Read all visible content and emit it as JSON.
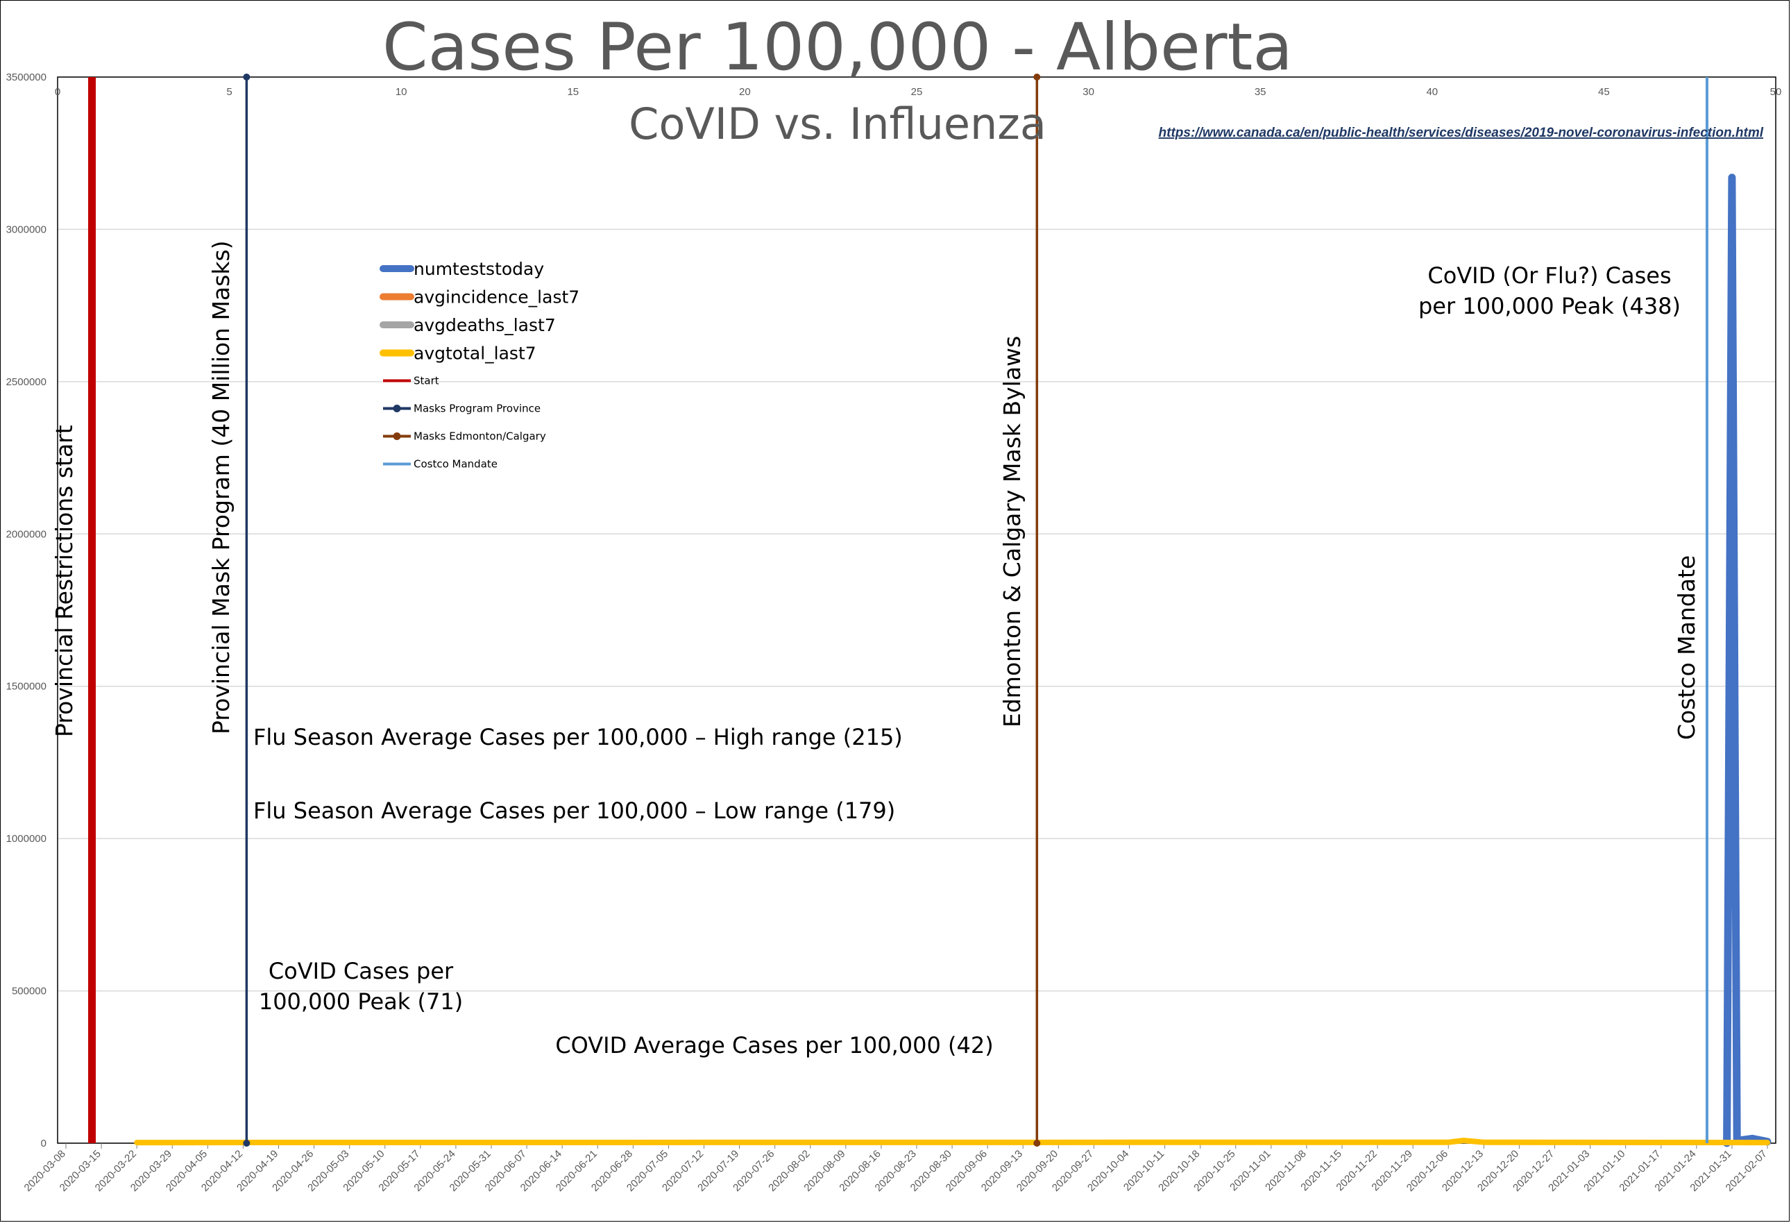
{
  "chart_data": {
    "type": "line",
    "title": "Cases Per 100,000 - Alberta",
    "subtitle": "CoVID vs. Influenza",
    "source_link": "https://www.canada.ca/en/public-health/services/diseases/2019-novel-coronavirus-infection.html",
    "ylim": [
      0,
      3500000
    ],
    "yticks": [
      "0",
      "500000",
      "1000000",
      "1500000",
      "2000000",
      "2500000",
      "3000000",
      "3500000"
    ],
    "xlim_secondary": [
      0,
      50
    ],
    "xticks_secondary": [
      "0",
      "5",
      "10",
      "15",
      "20",
      "25",
      "30",
      "35",
      "40",
      "45",
      "50"
    ],
    "grid": true,
    "legend_position": "upper-left inside",
    "x_dates": [
      "2020-03-08",
      "2020-03-15",
      "2020-03-22",
      "2020-03-29",
      "2020-04-05",
      "2020-04-12",
      "2020-04-19",
      "2020-04-26",
      "2020-05-03",
      "2020-05-10",
      "2020-05-17",
      "2020-05-24",
      "2020-05-31",
      "2020-06-07",
      "2020-06-14",
      "2020-06-21",
      "2020-06-28",
      "2020-07-05",
      "2020-07-12",
      "2020-07-19",
      "2020-07-26",
      "2020-08-02",
      "2020-08-09",
      "2020-08-16",
      "2020-08-23",
      "2020-08-30",
      "2020-09-06",
      "2020-09-13",
      "2020-09-20",
      "2020-09-27",
      "2020-10-04",
      "2020-10-11",
      "2020-10-18",
      "2020-10-25",
      "2020-11-01",
      "2020-11-08",
      "2020-11-15",
      "2020-11-22",
      "2020-11-29",
      "2020-12-06",
      "2020-12-13",
      "2020-12-20",
      "2020-12-27",
      "2021-01-03",
      "2021-01-10",
      "2021-01-17",
      "2021-01-24",
      "2021-01-31",
      "2021-02-07"
    ],
    "series": [
      {
        "name": "numteststoday",
        "color": "#4472c4",
        "points": [
          [
            "2021-01-30",
            0
          ],
          [
            "2021-01-31",
            3170000
          ],
          [
            "2021-02-01",
            8000
          ],
          [
            "2021-02-04",
            15000
          ],
          [
            "2021-02-07",
            5000
          ]
        ]
      },
      {
        "name": "avgincidence_last7",
        "color": "#ed7d31",
        "points": []
      },
      {
        "name": "avgdeaths_last7",
        "color": "#a5a5a5",
        "points": []
      },
      {
        "name": "avgtotal_last7",
        "color": "#ffc000",
        "points": [
          [
            "2020-03-22",
            2000
          ],
          [
            "2020-12-06",
            3000
          ],
          [
            "2020-12-09",
            9000
          ],
          [
            "2020-12-13",
            3000
          ],
          [
            "2021-02-07",
            2000
          ]
        ]
      }
    ],
    "markers": [
      {
        "name": "Start",
        "color": "#c00000",
        "x_secondary": 1
      },
      {
        "name": "Masks Program Province",
        "color": "#203864",
        "x_secondary": 5.5
      },
      {
        "name": "Masks Edmonton/Calgary",
        "color": "#843c0c",
        "x_secondary": 28.5
      },
      {
        "name": "Costco Mandate",
        "color": "#5b9bd5",
        "x_secondary": 48
      }
    ],
    "annotations": {
      "provincial_restrictions": "Provincial Restrictions start",
      "provincial_mask": "Provincial Mask Program (40 Million Masks)",
      "edmonton_calgary": "Edmonton & Calgary Mask Bylaws",
      "costco": "Costco Mandate",
      "flu_high": "Flu Season Average Cases per 100,000 – High range (215)",
      "flu_low": "Flu Season Average Cases per 100,000 – Low range (179)",
      "covid_peak_early_line1": "CoVID Cases per",
      "covid_peak_early_line2": "100,000 Peak (71)",
      "covid_avg": "COVID Average Cases per 100,000 (42)",
      "covid_peak_late_line1": "CoVID (Or Flu?) Cases",
      "covid_peak_late_line2": "per 100,000 Peak (438)"
    }
  }
}
